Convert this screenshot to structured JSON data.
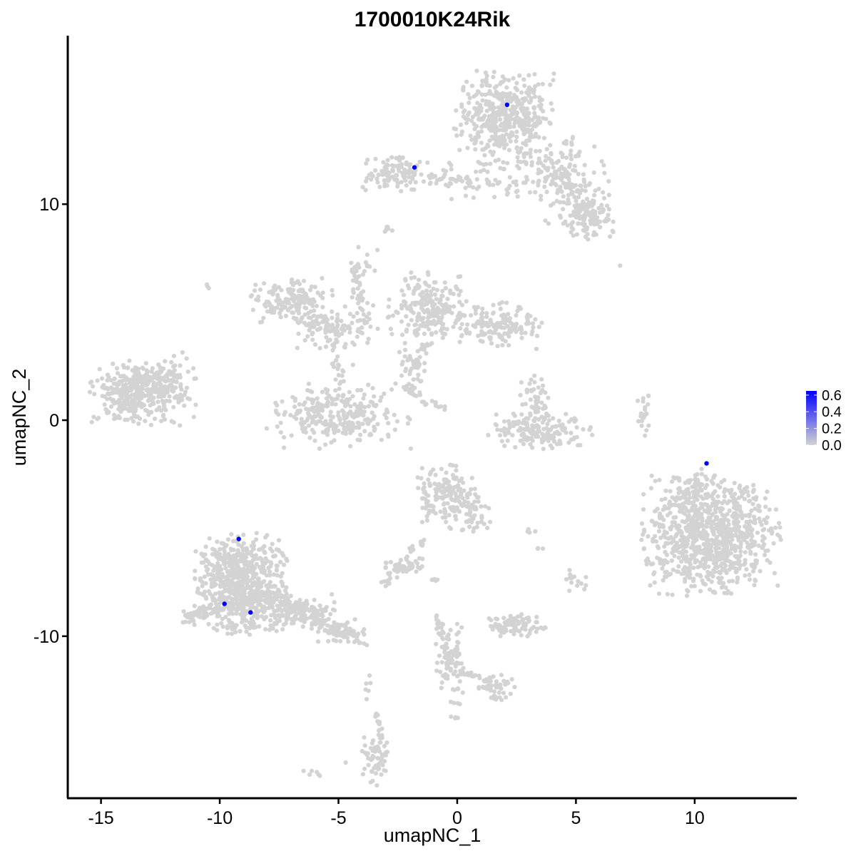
{
  "chart_data": {
    "type": "scatter",
    "title": "1700010K24Rik",
    "xlabel": "umapNC_1",
    "ylabel": "umapNC_2",
    "xlim": [
      -16.4,
      14.3
    ],
    "ylim": [
      -17.5,
      17.8
    ],
    "x_ticks": [
      -15,
      -10,
      -5,
      0,
      5,
      10
    ],
    "y_ticks": [
      -10,
      0,
      10
    ],
    "grid": false,
    "colors": {
      "low": "#d3d3d3",
      "high": "#0000ff"
    },
    "legend": {
      "type": "colorbar",
      "placement": "right",
      "ticks": [
        "0.0",
        "0.2",
        "0.4",
        "0.6"
      ],
      "range": [
        0,
        0.65
      ]
    },
    "clusters": [
      {
        "x": 2.0,
        "y": 14.0,
        "sx": 1.0,
        "sy": 1.0,
        "n": 450
      },
      {
        "x": 4.3,
        "y": 11.2,
        "sx": 1.0,
        "sy": 1.0,
        "n": 140
      },
      {
        "x": 5.5,
        "y": 9.5,
        "sx": 0.5,
        "sy": 0.5,
        "n": 130
      },
      {
        "x": -2.8,
        "y": 11.4,
        "sx": 0.8,
        "sy": 0.4,
        "n": 90
      },
      {
        "x": 1.2,
        "y": 11.1,
        "sx": 1.6,
        "sy": 0.5,
        "n": 60
      },
      {
        "x": -2.9,
        "y": 8.8,
        "sx": 0.15,
        "sy": 0.15,
        "n": 6
      },
      {
        "x": -7.0,
        "y": 5.5,
        "sx": 0.8,
        "sy": 0.5,
        "n": 150
      },
      {
        "x": -5.2,
        "y": 4.2,
        "sx": 0.7,
        "sy": 0.4,
        "n": 80
      },
      {
        "x": -4.0,
        "y": 5.6,
        "sx": 0.35,
        "sy": 1.4,
        "n": 40
      },
      {
        "x": -1.2,
        "y": 5.2,
        "sx": 0.8,
        "sy": 0.8,
        "n": 220
      },
      {
        "x": 1.3,
        "y": 4.4,
        "sx": 1.1,
        "sy": 0.5,
        "n": 160
      },
      {
        "x": -2.0,
        "y": 2.6,
        "sx": 0.3,
        "sy": 0.6,
        "n": 30
      },
      {
        "x": -5.0,
        "y": 0.2,
        "sx": 1.4,
        "sy": 0.7,
        "n": 280
      },
      {
        "x": -13.5,
        "y": 1.3,
        "sx": 0.9,
        "sy": 0.7,
        "n": 380
      },
      {
        "x": -11.7,
        "y": 1.5,
        "sx": 0.4,
        "sy": 0.8,
        "n": 40
      },
      {
        "x": 3.5,
        "y": -0.5,
        "sx": 1.0,
        "sy": 0.4,
        "n": 150
      },
      {
        "x": 3.3,
        "y": 1.0,
        "sx": 0.3,
        "sy": 0.6,
        "n": 50
      },
      {
        "x": 7.9,
        "y": 0.2,
        "sx": 0.15,
        "sy": 0.5,
        "n": 20
      },
      {
        "x": 10.7,
        "y": -5.3,
        "sx": 1.35,
        "sy": 1.3,
        "n": 900
      },
      {
        "x": -0.4,
        "y": -3.6,
        "sx": 0.6,
        "sy": 0.7,
        "n": 180
      },
      {
        "x": 0.8,
        "y": -4.5,
        "sx": 0.3,
        "sy": 0.5,
        "n": 30
      },
      {
        "x": -9.1,
        "y": -7.6,
        "sx": 0.9,
        "sy": 1.1,
        "n": 700
      },
      {
        "x": -6.7,
        "y": -8.9,
        "sx": 0.9,
        "sy": 0.4,
        "n": 130
      },
      {
        "x": -5.0,
        "y": -9.8,
        "sx": 0.5,
        "sy": 0.3,
        "n": 60
      },
      {
        "x": -2.3,
        "y": -6.8,
        "sx": 0.4,
        "sy": 0.15,
        "n": 45
      },
      {
        "x": -1.6,
        "y": -6.0,
        "sx": 0.15,
        "sy": 0.5,
        "n": 12
      },
      {
        "x": 2.4,
        "y": -9.5,
        "sx": 0.6,
        "sy": 0.25,
        "n": 90
      },
      {
        "x": -0.3,
        "y": -11.2,
        "sx": 0.3,
        "sy": 0.9,
        "n": 80
      },
      {
        "x": 1.6,
        "y": -12.3,
        "sx": 0.4,
        "sy": 0.3,
        "n": 50
      },
      {
        "x": -3.4,
        "y": -15.6,
        "sx": 0.3,
        "sy": 0.6,
        "n": 60
      },
      {
        "x": 4.9,
        "y": -7.4,
        "sx": 0.3,
        "sy": 0.25,
        "n": 15
      },
      {
        "x": 3.1,
        "y": -5.2,
        "sx": 0.12,
        "sy": 0.1,
        "n": 4
      },
      {
        "x": 3.4,
        "y": -6.0,
        "sx": 0.12,
        "sy": 0.1,
        "n": 3
      },
      {
        "x": -1.0,
        "y": -7.2,
        "sx": 0.12,
        "sy": 0.2,
        "n": 4
      },
      {
        "x": -6.1,
        "y": -16.3,
        "sx": 0.2,
        "sy": 0.1,
        "n": 6
      },
      {
        "x": -0.1,
        "y": -13.9,
        "sx": 0.15,
        "sy": 0.1,
        "n": 4
      },
      {
        "x": -3.8,
        "y": -12.8,
        "sx": 0.1,
        "sy": 0.5,
        "n": 6
      },
      {
        "x": -10.5,
        "y": 6.1,
        "sx": 0.1,
        "sy": 0.1,
        "n": 3
      },
      {
        "x": 6.8,
        "y": 7.1,
        "sx": 0.05,
        "sy": 0.05,
        "n": 1
      },
      {
        "x": 5.5,
        "y": 8.4,
        "sx": 0.05,
        "sy": 0.05,
        "n": 1
      },
      {
        "x": -4.7,
        "y": -15.8,
        "sx": 0.05,
        "sy": 0.05,
        "n": 1
      }
    ],
    "bridges": [
      {
        "x1": 3.0,
        "y1": 12.4,
        "x2": 5.2,
        "y2": 10.5,
        "n": 40,
        "jitter": 0.35
      },
      {
        "x1": -2.0,
        "y1": 11.3,
        "x2": 0.8,
        "y2": 11.0,
        "n": 35,
        "jitter": 0.25
      },
      {
        "x1": -4.4,
        "y1": 7.3,
        "x2": -3.8,
        "y2": 4.4,
        "n": 30,
        "jitter": 0.15
      },
      {
        "x1": -6.6,
        "y1": 5.0,
        "x2": -5.0,
        "y2": 4.0,
        "n": 30,
        "jitter": 0.25
      },
      {
        "x1": -5.3,
        "y1": 3.6,
        "x2": -4.8,
        "y2": 1.5,
        "n": 25,
        "jitter": 0.2
      },
      {
        "x1": -13.0,
        "y1": 1.3,
        "x2": -11.5,
        "y2": 2.5,
        "n": 25,
        "jitter": 0.3
      },
      {
        "x1": -2.0,
        "y1": 2.0,
        "x2": -1.3,
        "y2": 3.6,
        "n": 20,
        "jitter": 0.2
      },
      {
        "x1": -2.3,
        "y1": 1.6,
        "x2": -1.3,
        "y2": 0.8,
        "n": 20,
        "jitter": 0.15
      },
      {
        "x1": -1.0,
        "y1": 0.8,
        "x2": -0.5,
        "y2": 0.6,
        "n": 8,
        "jitter": 0.1
      },
      {
        "x1": 2.1,
        "y1": -0.1,
        "x2": 3.3,
        "y2": -0.6,
        "n": 20,
        "jitter": 0.2
      },
      {
        "x1": -8.0,
        "y1": -8.2,
        "x2": -6.2,
        "y2": -8.8,
        "n": 70,
        "jitter": 0.3
      },
      {
        "x1": -6.2,
        "y1": -9.0,
        "x2": -3.7,
        "y2": -10.3,
        "n": 50,
        "jitter": 0.25
      },
      {
        "x1": -3.0,
        "y1": -7.6,
        "x2": -1.8,
        "y2": -5.9,
        "n": 20,
        "jitter": 0.15
      },
      {
        "x1": -0.9,
        "y1": -9.0,
        "x2": -0.3,
        "y2": -11.5,
        "n": 35,
        "jitter": 0.15
      },
      {
        "x1": 0.2,
        "y1": -11.6,
        "x2": 1.3,
        "y2": -12.1,
        "n": 20,
        "jitter": 0.15
      },
      {
        "x1": -3.4,
        "y1": -13.5,
        "x2": -3.2,
        "y2": -15.0,
        "n": 15,
        "jitter": 0.1
      },
      {
        "x1": -11.5,
        "y1": -9.2,
        "x2": -10.0,
        "y2": -8.6,
        "n": 50,
        "jitter": 0.3
      },
      {
        "x1": 9.5,
        "y1": -4.0,
        "x2": 10.6,
        "y2": -2.3,
        "n": 40,
        "jitter": 0.4
      }
    ],
    "expressing_points": [
      {
        "x": 2.1,
        "y": 14.6,
        "value": 0.65
      },
      {
        "x": -1.8,
        "y": 11.7,
        "value": 0.65
      },
      {
        "x": 10.5,
        "y": -2.0,
        "value": 0.65
      },
      {
        "x": -9.2,
        "y": -5.5,
        "value": 0.65
      },
      {
        "x": -9.8,
        "y": -8.5,
        "value": 0.65
      },
      {
        "x": -8.7,
        "y": -8.9,
        "value": 0.65
      }
    ]
  }
}
